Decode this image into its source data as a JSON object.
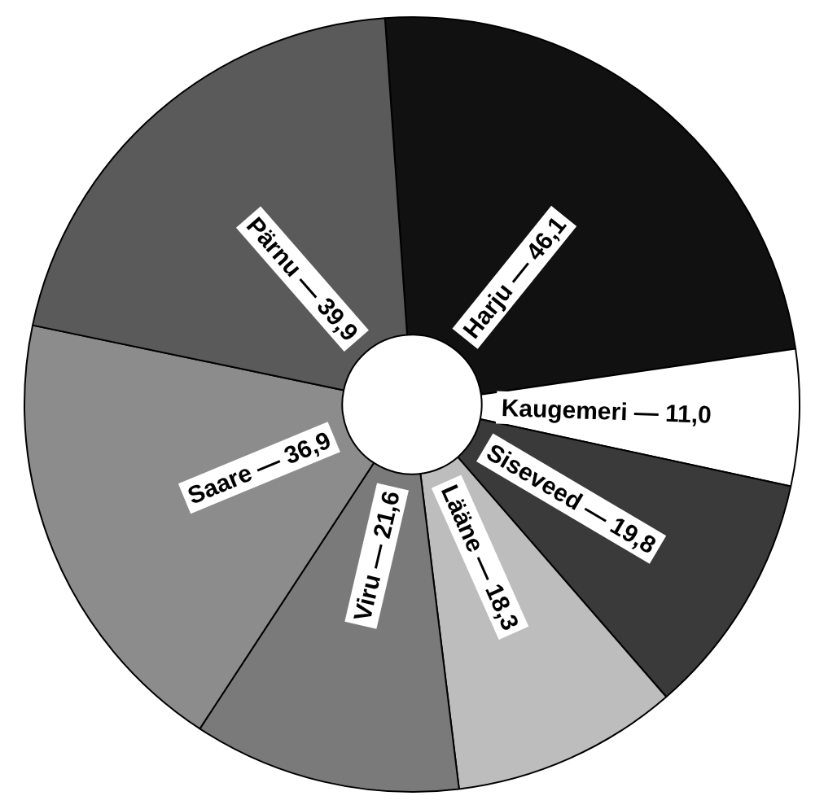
{
  "chart_data": {
    "type": "donut",
    "categories": [
      "Harju",
      "Kaugemeri",
      "Siseveed",
      "Lääne",
      "Viru",
      "Saare",
      "Pärnu"
    ],
    "values": [
      46.1,
      11.0,
      19.8,
      18.3,
      21.6,
      36.9,
      39.9
    ],
    "value_labels": [
      "— 46,1",
      "— 11,0",
      "— 19,8",
      "— 18,3",
      "— 21,6",
      "— 36,9",
      "— 39,9"
    ],
    "colors": [
      "#111111",
      "#ffffff",
      "#3a3a3a",
      "#bdbdbd",
      "#7a7a7a",
      "#8c8c8c",
      "#5a5a5a"
    ],
    "legend": false
  }
}
